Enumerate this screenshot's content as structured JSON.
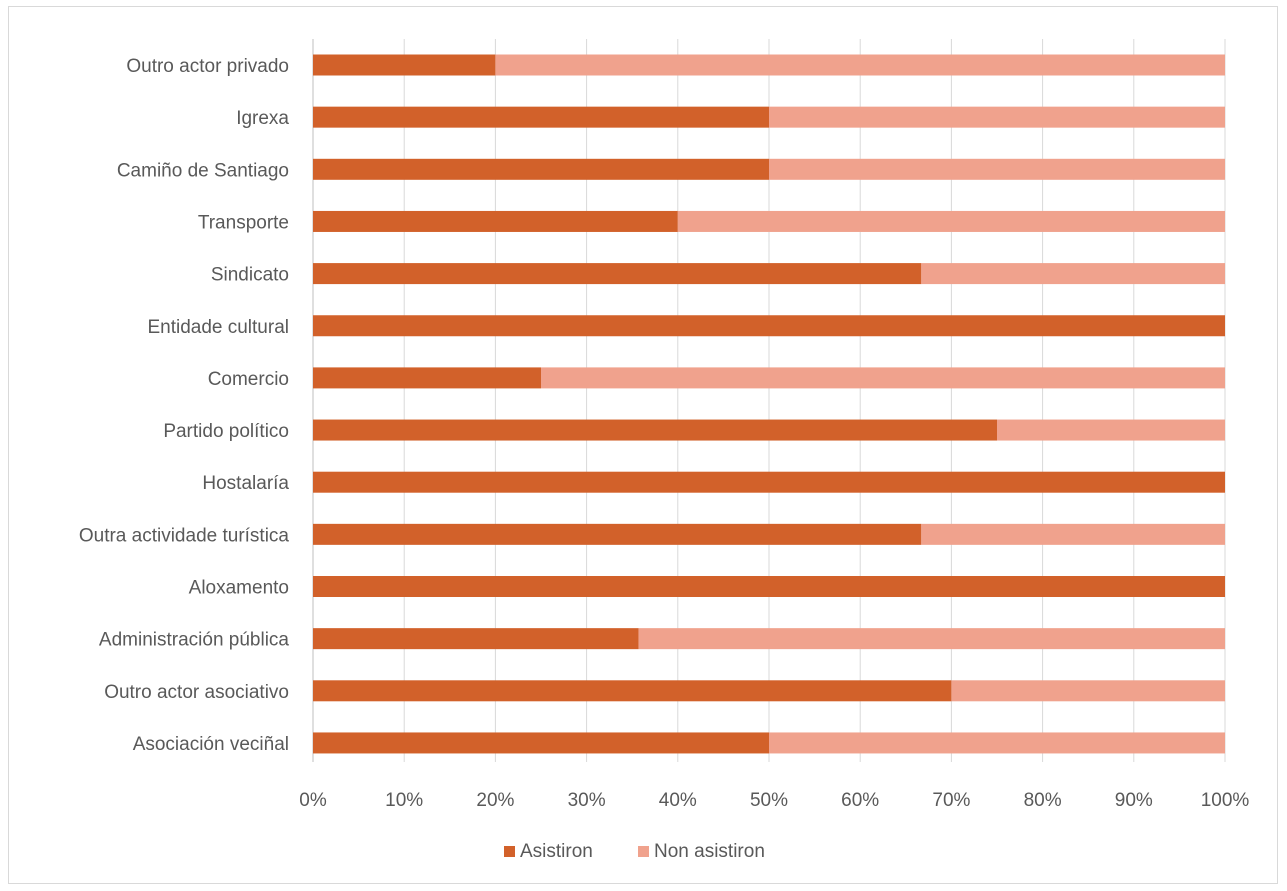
{
  "chart_data": {
    "type": "bar",
    "orientation": "horizontal",
    "stacked": "percent",
    "title": "",
    "xlabel": "",
    "ylabel": "",
    "xlim": [
      0,
      100
    ],
    "x_ticks": [
      "0%",
      "10%",
      "20%",
      "30%",
      "40%",
      "50%",
      "60%",
      "70%",
      "80%",
      "90%",
      "100%"
    ],
    "grid": "vertical",
    "legend_position": "bottom",
    "categories": [
      "Outro actor privado",
      "Igrexa",
      "Camiño de Santiago",
      "Transporte",
      "Sindicato",
      "Entidade cultural",
      "Comercio",
      "Partido político",
      "Hostalaría",
      "Outra actividade turística",
      "Aloxamento",
      "Administración pública",
      "Outro actor asociativo",
      "Asociación veciñal"
    ],
    "series": [
      {
        "name": "Asistiron",
        "color": "#d2612a",
        "values": [
          20,
          50,
          50,
          40,
          66.7,
          100,
          25,
          75,
          100,
          66.7,
          100,
          35.7,
          70,
          50
        ]
      },
      {
        "name": "Non asistiron",
        "color": "#f0a28d",
        "values": [
          80,
          50,
          50,
          60,
          33.3,
          0,
          75,
          25,
          0,
          33.3,
          0,
          64.3,
          30,
          50
        ]
      }
    ]
  }
}
